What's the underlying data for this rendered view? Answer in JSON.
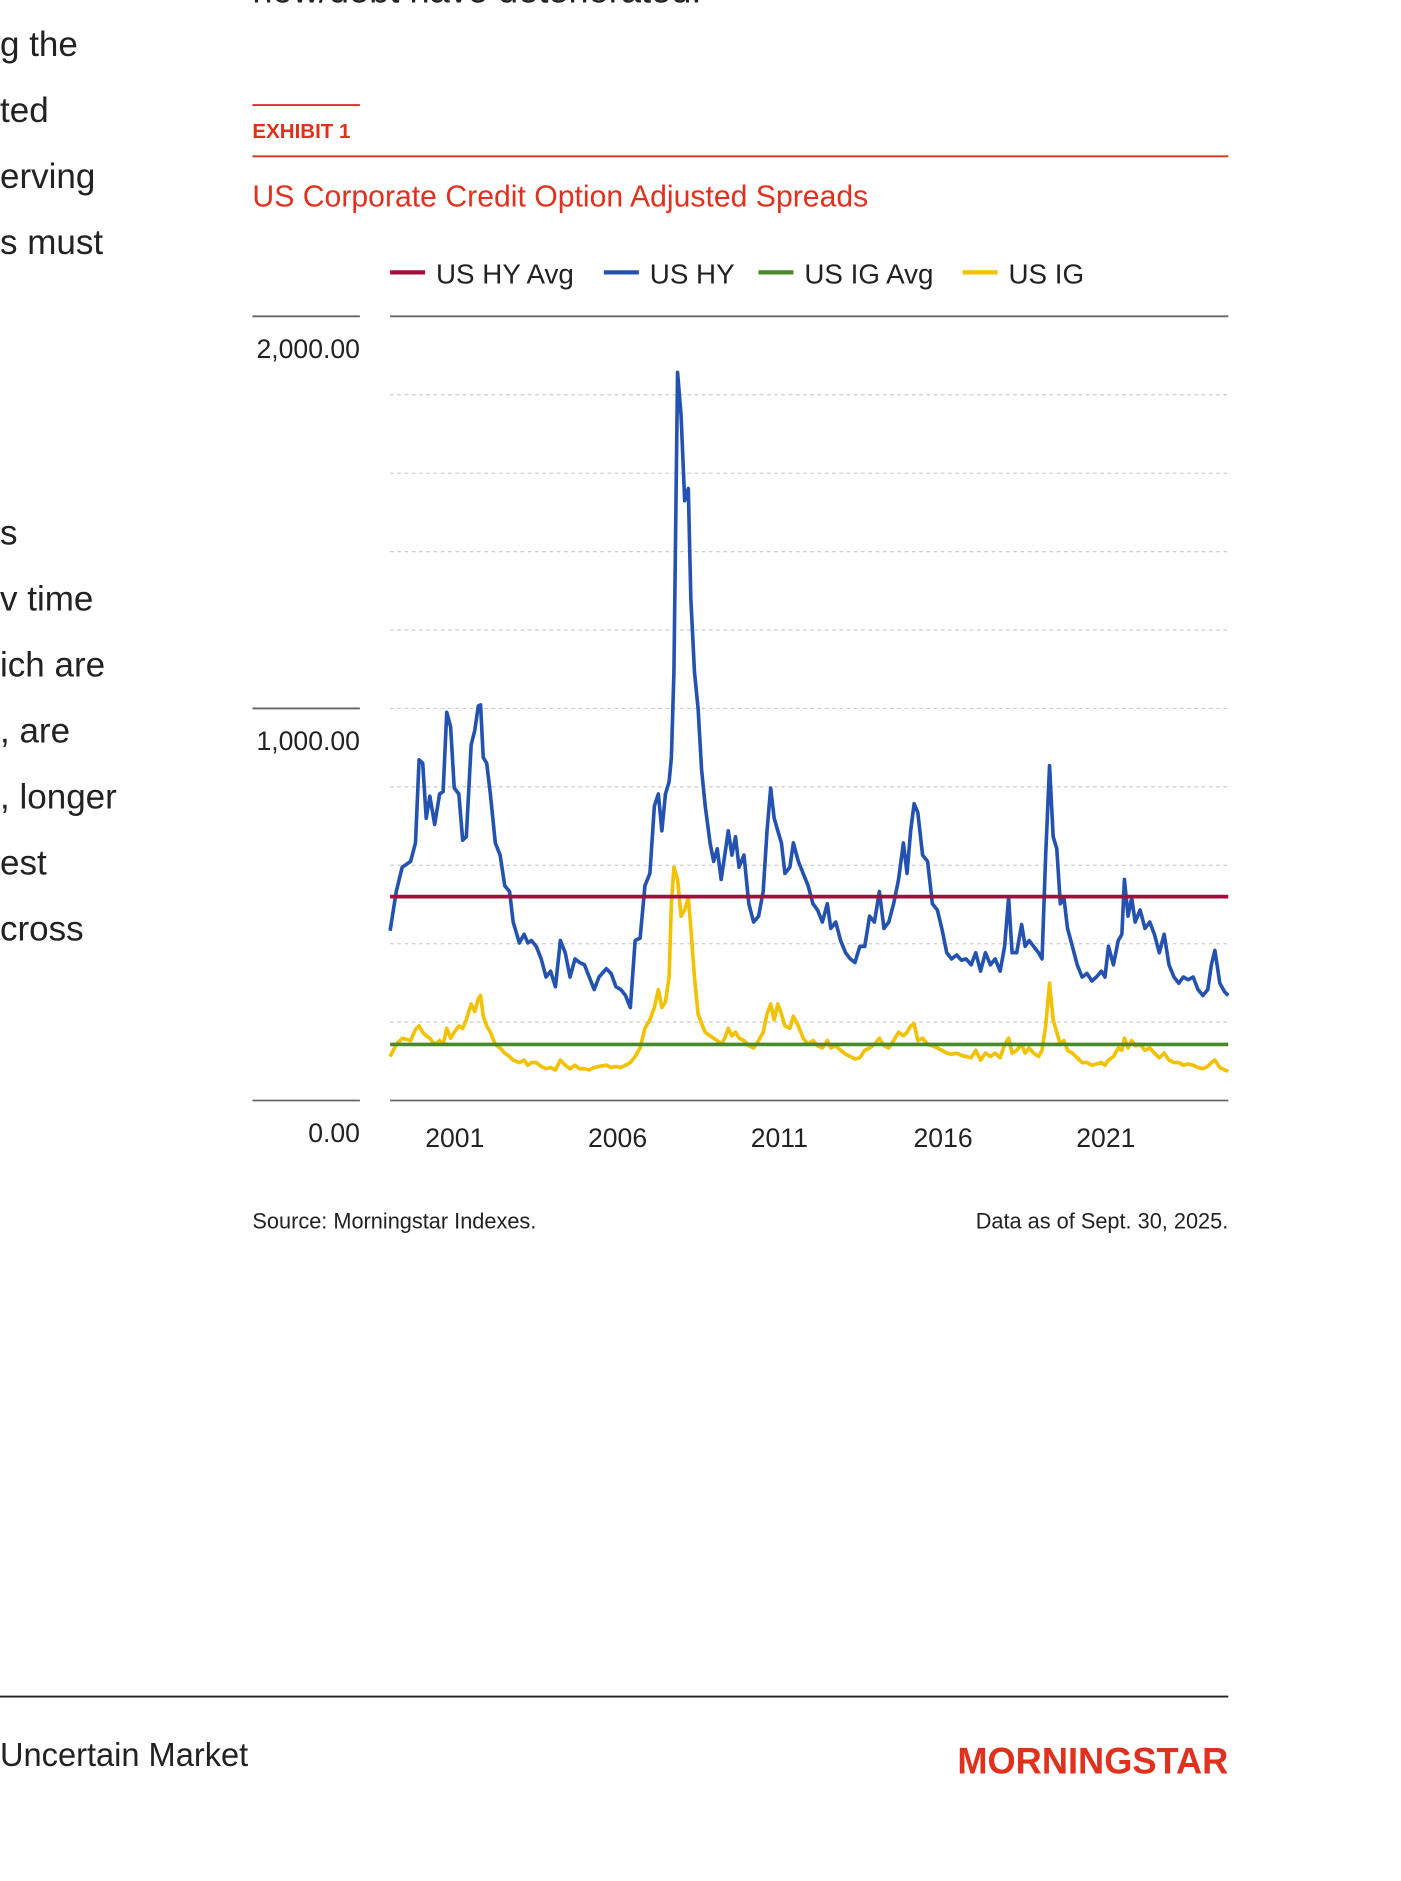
{
  "body_text": {
    "top_line": "now/debt have deteriorated.",
    "left_column": [
      "g the",
      "ted",
      "erving",
      "s must",
      "s",
      "v time",
      "ich are",
      ", are",
      ", longer",
      "est",
      "cross"
    ]
  },
  "exhibit": {
    "label": "EXHIBIT 1"
  },
  "chart_data": {
    "type": "line",
    "title": "US Corporate Credit Option Adjusted Spreads",
    "source": "Source: Morningstar Indexes.",
    "note": "Data as of Sept. 30, 2025.",
    "xlim": [
      1999.92,
      2025.67
    ],
    "xticks": [
      2001,
      2006,
      2011,
      2016,
      2021
    ],
    "ylim": [
      0,
      2000
    ],
    "yticks": [
      {
        "value": 0,
        "label": "0.00"
      },
      {
        "value": 1000,
        "label": "1,000.00"
      },
      {
        "value": 2000,
        "label": "2,000.00"
      }
    ],
    "minor_yticks": [
      200,
      400,
      600,
      800,
      1000,
      1200,
      1400,
      1600,
      1800
    ],
    "grid": true,
    "x": [
      1999.92,
      2000.11,
      2000.29,
      2000.55,
      2000.7,
      2000.81,
      2000.92,
      2001.03,
      2001.14,
      2001.29,
      2001.44,
      2001.55,
      2001.66,
      2001.78,
      2001.89,
      2002.03,
      2002.15,
      2002.26,
      2002.41,
      2002.52,
      2002.63,
      2002.7,
      2002.78,
      2002.89,
      2003.0,
      2003.15,
      2003.3,
      2003.44,
      2003.59,
      2003.7,
      2003.89,
      2004.04,
      2004.15,
      2004.26,
      2004.41,
      2004.56,
      2004.71,
      2004.85,
      2005.0,
      2005.15,
      2005.3,
      2005.45,
      2005.6,
      2005.74,
      2005.89,
      2006.04,
      2006.19,
      2006.34,
      2006.56,
      2006.71,
      2006.86,
      2007.01,
      2007.15,
      2007.3,
      2007.45,
      2007.6,
      2007.75,
      2007.9,
      2008.04,
      2008.16,
      2008.27,
      2008.38,
      2008.49,
      2008.56,
      2008.64,
      2008.75,
      2008.86,
      2008.97,
      2009.08,
      2009.16,
      2009.27,
      2009.38,
      2009.49,
      2009.6,
      2009.75,
      2009.86,
      2009.97,
      2010.09,
      2010.2,
      2010.31,
      2010.42,
      2010.53,
      2010.64,
      2010.79,
      2010.94,
      2011.09,
      2011.24,
      2011.38,
      2011.5,
      2011.61,
      2011.72,
      2011.83,
      2011.94,
      2012.05,
      2012.2,
      2012.31,
      2012.46,
      2012.61,
      2012.76,
      2012.91,
      2013.05,
      2013.2,
      2013.35,
      2013.46,
      2013.61,
      2013.76,
      2013.91,
      2014.06,
      2014.2,
      2014.35,
      2014.5,
      2014.65,
      2014.8,
      2014.95,
      2015.09,
      2015.24,
      2015.39,
      2015.54,
      2015.69,
      2015.8,
      2015.91,
      2016.02,
      2016.13,
      2016.28,
      2016.43,
      2016.58,
      2016.73,
      2016.87,
      2017.02,
      2017.17,
      2017.32,
      2017.47,
      2017.62,
      2017.77,
      2017.91,
      2018.06,
      2018.21,
      2018.36,
      2018.51,
      2018.66,
      2018.8,
      2018.92,
      2019.03,
      2019.17,
      2019.32,
      2019.43,
      2019.55,
      2019.69,
      2019.84,
      2019.95,
      2020.06,
      2020.18,
      2020.29,
      2020.4,
      2020.51,
      2020.62,
      2020.73,
      2020.88,
      2021.03,
      2021.18,
      2021.33,
      2021.48,
      2021.62,
      2021.77,
      2021.88,
      2021.99,
      2022.14,
      2022.29,
      2022.4,
      2022.48,
      2022.59,
      2022.7,
      2022.81,
      2022.96,
      2023.11,
      2023.26,
      2023.4,
      2023.55,
      2023.7,
      2023.85,
      2024.0,
      2024.15,
      2024.29,
      2024.44,
      2024.59,
      2024.74,
      2024.89,
      2025.04,
      2025.15,
      2025.26,
      2025.41,
      2025.56,
      2025.67
    ],
    "legend": "top",
    "series": [
      {
        "name": "US HY Avg",
        "color": "#a50d3c",
        "value": 520
      },
      {
        "name": "US HY",
        "color": "#2452b0",
        "values": [
          433,
          533,
          595,
          610,
          657,
          869,
          860,
          720,
          776,
          704,
          782,
          788,
          990,
          953,
          797,
          782,
          664,
          673,
          907,
          944,
          1006,
          1009,
          875,
          860,
          782,
          657,
          626,
          548,
          533,
          455,
          402,
          424,
          402,
          408,
          393,
          361,
          315,
          330,
          290,
          408,
          377,
          315,
          361,
          352,
          346,
          315,
          283,
          315,
          336,
          324,
          290,
          283,
          268,
          237,
          408,
          414,
          548,
          579,
          751,
          782,
          688,
          782,
          813,
          875,
          1093,
          1857,
          1748,
          1530,
          1561,
          1280,
          1093,
          1000,
          844,
          751,
          657,
          610,
          642,
          564,
          626,
          688,
          626,
          673,
          595,
          626,
          502,
          455,
          470,
          533,
          688,
          797,
          720,
          688,
          657,
          579,
          595,
          657,
          610,
          579,
          548,
          502,
          486,
          455,
          502,
          439,
          455,
          408,
          377,
          361,
          352,
          393,
          393,
          470,
          455,
          533,
          439,
          455,
          502,
          564,
          657,
          579,
          688,
          757,
          735,
          626,
          610,
          502,
          486,
          439,
          377,
          361,
          371,
          358,
          361,
          346,
          377,
          330,
          377,
          346,
          361,
          330,
          393,
          517,
          377,
          377,
          449,
          393,
          408,
          393,
          377,
          361,
          626,
          854,
          673,
          642,
          502,
          517,
          439,
          393,
          346,
          315,
          324,
          305,
          315,
          330,
          315,
          393,
          346,
          408,
          424,
          564,
          470,
          517,
          455,
          486,
          439,
          455,
          424,
          377,
          424,
          346,
          315,
          299,
          315,
          308,
          315,
          283,
          268,
          283,
          346,
          383,
          299,
          277,
          268
        ]
      },
      {
        "name": "US IG Avg",
        "color": "#4a8a2a",
        "value": 143
      },
      {
        "name": "US IG",
        "color": "#f2c200",
        "values": [
          112,
          143,
          159,
          153,
          181,
          190,
          174,
          165,
          159,
          143,
          153,
          143,
          184,
          159,
          174,
          190,
          184,
          206,
          246,
          227,
          259,
          268,
          215,
          190,
          174,
          143,
          134,
          121,
          112,
          103,
          97,
          103,
          90,
          97,
          97,
          87,
          81,
          84,
          78,
          103,
          90,
          81,
          90,
          81,
          81,
          78,
          84,
          87,
          90,
          84,
          87,
          84,
          90,
          97,
          112,
          134,
          184,
          206,
          237,
          283,
          237,
          252,
          315,
          502,
          595,
          564,
          470,
          486,
          517,
          439,
          315,
          221,
          196,
          174,
          165,
          159,
          153,
          143,
          159,
          184,
          165,
          174,
          159,
          153,
          140,
          134,
          153,
          174,
          221,
          246,
          206,
          246,
          221,
          190,
          184,
          215,
          190,
          159,
          143,
          153,
          140,
          134,
          153,
          134,
          140,
          128,
          118,
          112,
          106,
          109,
          128,
          134,
          143,
          159,
          140,
          134,
          153,
          174,
          165,
          174,
          190,
          196,
          153,
          159,
          143,
          140,
          134,
          128,
          121,
          118,
          121,
          115,
          112,
          109,
          128,
          103,
          121,
          112,
          121,
          109,
          143,
          159,
          121,
          128,
          143,
          121,
          134,
          121,
          112,
          128,
          190,
          299,
          206,
          174,
          143,
          153,
          128,
          121,
          109,
          97,
          97,
          90,
          93,
          97,
          90,
          103,
          112,
          134,
          128,
          159,
          134,
          153,
          140,
          143,
          128,
          134,
          121,
          109,
          121,
          103,
          97,
          97,
          90,
          93,
          90,
          84,
          81,
          87,
          97,
          103,
          84,
          78,
          75
        ]
      }
    ]
  },
  "footer": {
    "title": "Uncertain Market",
    "logo": "MORNINGSTAR"
  }
}
